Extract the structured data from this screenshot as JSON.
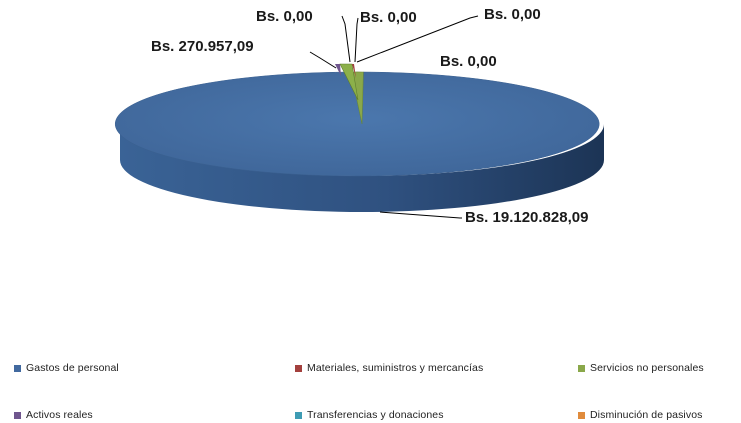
{
  "chart_data": {
    "type": "pie",
    "style": "3d",
    "currency_prefix": "Bs.",
    "categories": [
      "Gastos de personal",
      "Materiales, suministros y mercancías",
      "Servicios no personales",
      "Activos reales",
      "Transferencias y donaciones",
      "Disminución de pasivos"
    ],
    "values": [
      19120828.09,
      0.0,
      270957.09,
      0.0,
      0.0,
      0.0
    ],
    "data_labels": [
      "Bs. 19.120.828,09",
      "Bs. 0,00",
      "Bs. 270.957,09",
      "Bs. 0,00",
      "Bs. 0,00",
      "Bs. 0,00"
    ],
    "colors": [
      "#41699f",
      "#a3403d",
      "#8aa84a",
      "#6f568e",
      "#3e9cb4",
      "#e08b3c"
    ],
    "legend_position": "bottom"
  }
}
